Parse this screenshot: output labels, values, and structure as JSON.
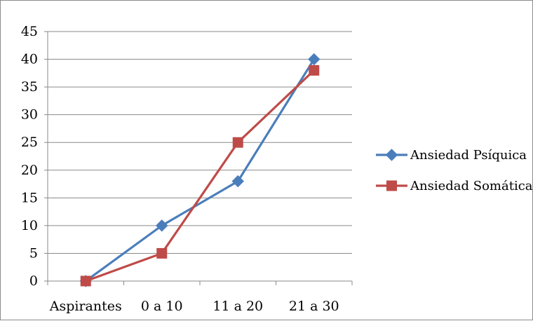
{
  "chart_data": {
    "type": "line",
    "categories": [
      "Aspirantes",
      "0 a 10",
      "11 a 20",
      "21 a 30"
    ],
    "series": [
      {
        "name": "Ansiedad Psíquica",
        "values": [
          0,
          10,
          18,
          40
        ],
        "color": "#4a7ebb",
        "marker": "diamond"
      },
      {
        "name": "Ansiedad Somática",
        "values": [
          0,
          5,
          25,
          38
        ],
        "color": "#be4b48",
        "marker": "square"
      }
    ],
    "ylim": [
      0,
      45
    ],
    "yticks": [
      0,
      5,
      10,
      15,
      20,
      25,
      30,
      35,
      40,
      45
    ],
    "grid": true,
    "legend": "right"
  }
}
